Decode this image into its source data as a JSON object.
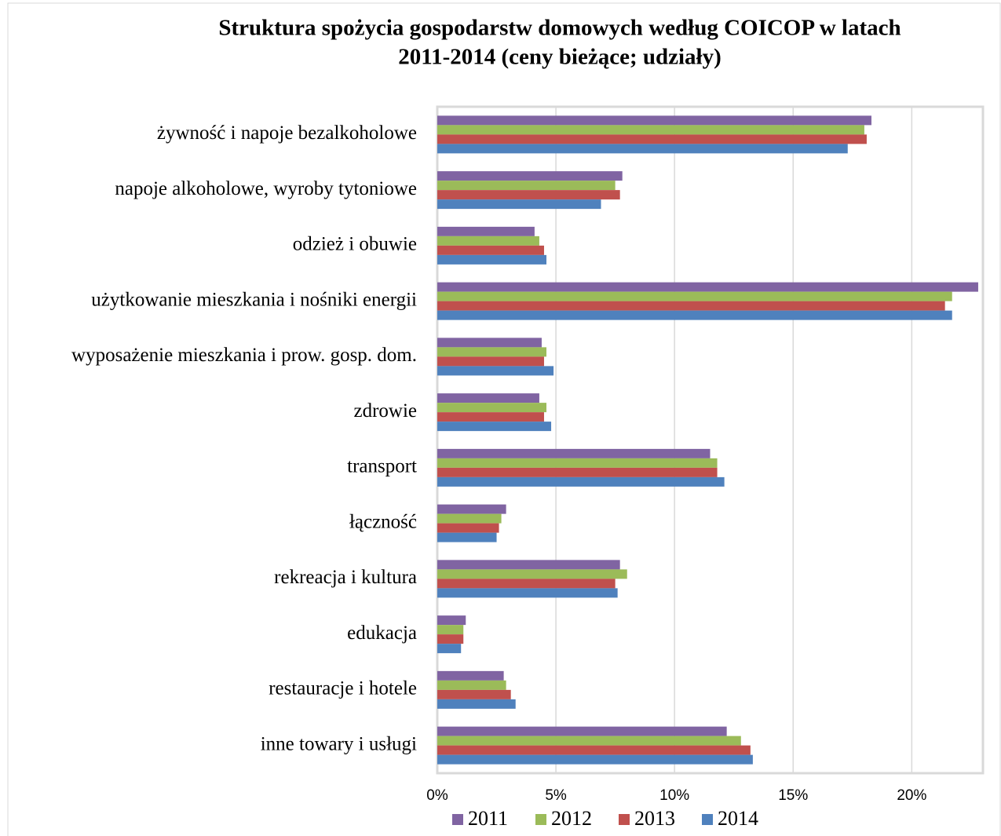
{
  "chart_data": {
    "type": "barh",
    "title": [
      "Struktura spożycia gospodarstw domowych według COICOP w latach",
      "2011-2014 (ceny bieżące; udziały)"
    ],
    "categories": [
      "żywność i napoje bezalkoholowe",
      "napoje alkoholowe, wyroby tytoniowe",
      "odzież i obuwie",
      "użytkowanie mieszkania i nośniki energii",
      "wyposażenie mieszkania i prow. gosp. dom.",
      "zdrowie",
      "transport",
      "łączność",
      "rekreacja i kultura",
      "edukacja",
      "restauracje i hotele",
      "inne towary i usługi"
    ],
    "series": [
      {
        "name": "2011",
        "color": "#8064a2",
        "values": [
          18.3,
          7.8,
          4.1,
          22.8,
          4.4,
          4.3,
          11.5,
          2.9,
          7.7,
          1.2,
          2.8,
          12.2
        ]
      },
      {
        "name": "2012",
        "color": "#9bbb59",
        "values": [
          18.0,
          7.5,
          4.3,
          21.7,
          4.6,
          4.6,
          11.8,
          2.7,
          8.0,
          1.1,
          2.9,
          12.8
        ]
      },
      {
        "name": "2013",
        "color": "#c0504d",
        "values": [
          18.1,
          7.7,
          4.5,
          21.4,
          4.5,
          4.5,
          11.8,
          2.6,
          7.5,
          1.1,
          3.1,
          13.2
        ]
      },
      {
        "name": "2014",
        "color": "#4f81bd",
        "values": [
          17.3,
          6.9,
          4.6,
          21.7,
          4.9,
          4.8,
          12.1,
          2.5,
          7.6,
          1.0,
          3.3,
          13.3
        ]
      }
    ],
    "xlim": [
      0,
      23
    ],
    "xticks": [
      {
        "value": 0,
        "label": "0%"
      },
      {
        "value": 5,
        "label": "5%"
      },
      {
        "value": 10,
        "label": "10%"
      },
      {
        "value": 15,
        "label": "15%"
      },
      {
        "value": 20,
        "label": "20%"
      }
    ],
    "grid": true,
    "legend": "bottom"
  }
}
